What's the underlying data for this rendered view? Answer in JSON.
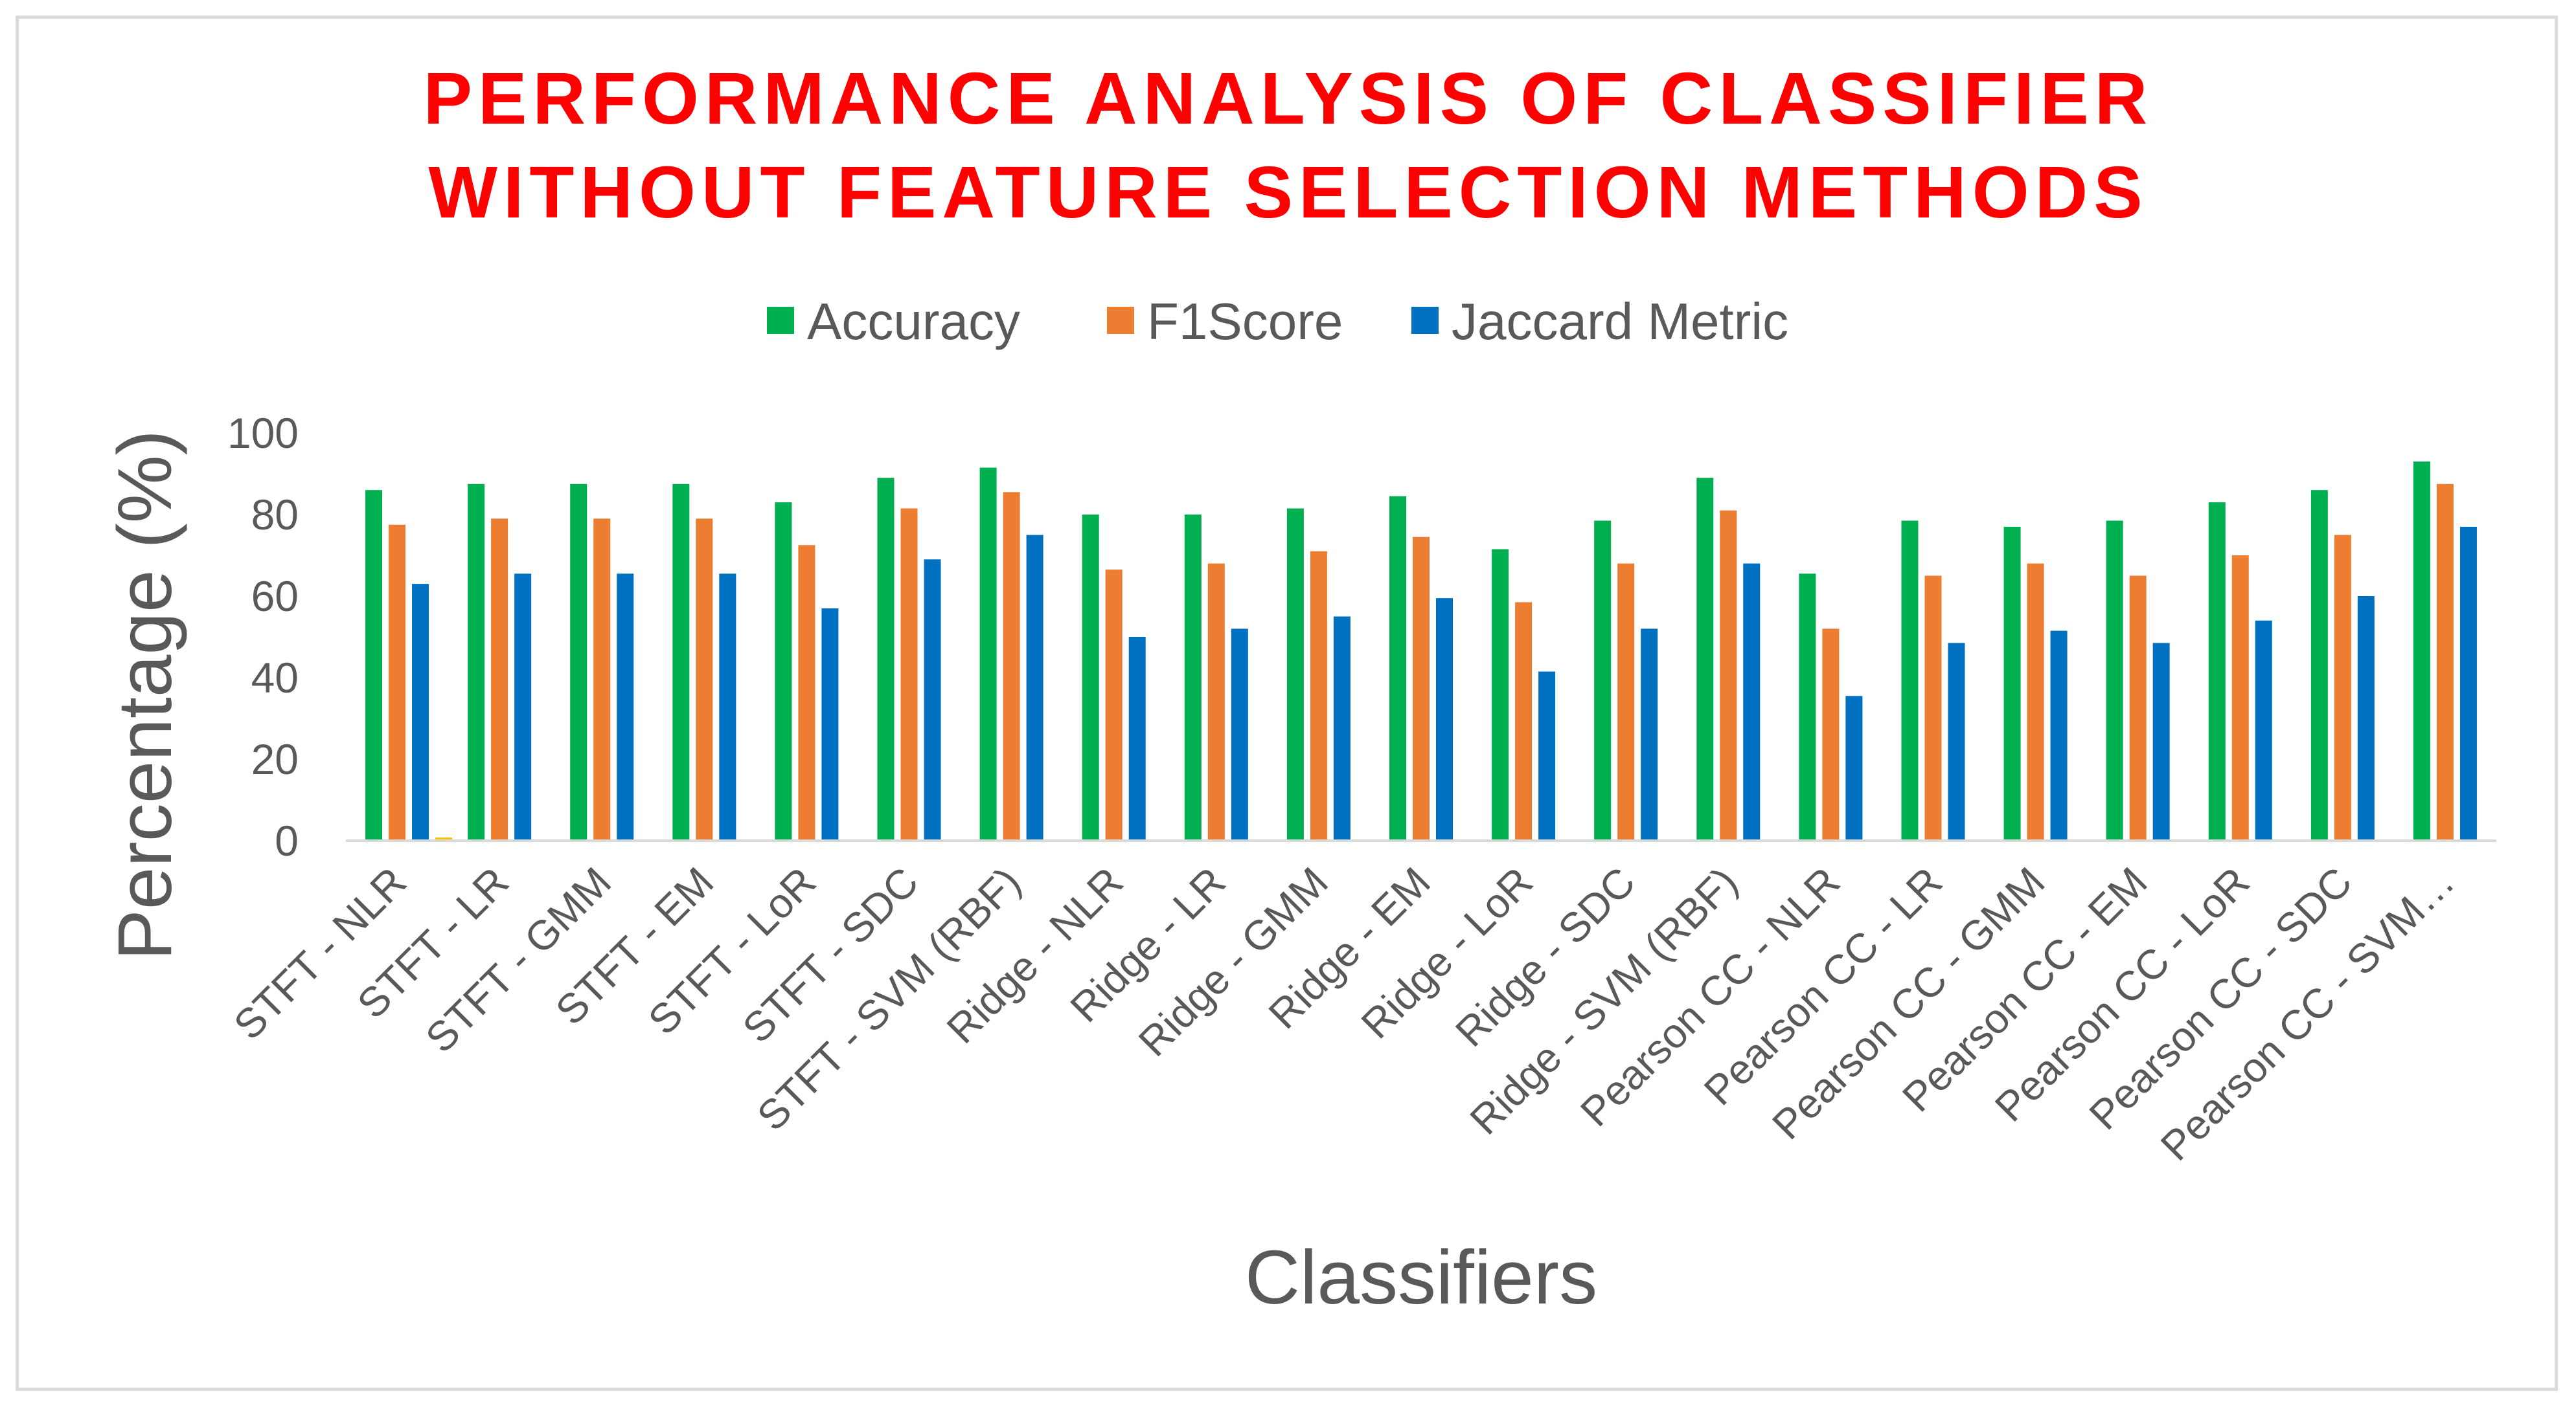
{
  "chart_data": {
    "type": "bar",
    "title_lines": [
      "PERFORMANCE ANALYSIS OF CLASSIFIER",
      "WITHOUT FEATURE SELECTION METHODS"
    ],
    "xlabel": "Classifiers",
    "ylabel": "Percentage (%)",
    "ylim": [
      0,
      100
    ],
    "yticks": [
      0,
      20,
      40,
      60,
      80,
      100
    ],
    "grid": false,
    "legend_position": "top",
    "categories": [
      "STFT - NLR",
      "STFT - LR",
      "STFT - GMM",
      "STFT - EM",
      "STFT - LoR",
      "STFT - SDC",
      "STFT - SVM (RBF)",
      "Ridge - NLR",
      "Ridge - LR",
      "Ridge - GMM",
      "Ridge - EM",
      "Ridge - LoR",
      "Ridge - SDC",
      "Ridge - SVM (RBF)",
      "Pearson CC - NLR",
      "Pearson CC - LR",
      "Pearson CC - GMM",
      "Pearson CC - EM",
      "Pearson CC - LoR",
      "Pearson CC - SDC",
      "Pearson CC - SVM…"
    ],
    "series": [
      {
        "name": "Accuracy",
        "color": "#00b050",
        "values": [
          86,
          87.5,
          87.5,
          87.5,
          83,
          89,
          91.5,
          80,
          80,
          81.5,
          84.5,
          71.5,
          78.5,
          89,
          65.5,
          78.5,
          77,
          78.5,
          83,
          86,
          93
        ]
      },
      {
        "name": "F1Score",
        "color": "#ed7d31",
        "values": [
          77.5,
          79,
          79,
          79,
          72.5,
          81.5,
          85.5,
          66.5,
          68,
          71,
          74.5,
          58.5,
          68,
          81,
          52,
          65,
          68,
          65,
          70,
          75,
          87.5
        ]
      },
      {
        "name": "Jaccard Metric",
        "color": "#0070c0",
        "values": [
          63,
          65.5,
          65.5,
          65.5,
          57,
          69,
          75,
          50,
          52,
          55,
          59.5,
          41.5,
          52,
          68,
          35.5,
          48.5,
          51.5,
          48.5,
          54,
          60,
          77
        ]
      }
    ],
    "extra_marks": [
      {
        "category": "STFT - NLR",
        "value": 0.8,
        "color": "#ffc000"
      }
    ]
  }
}
